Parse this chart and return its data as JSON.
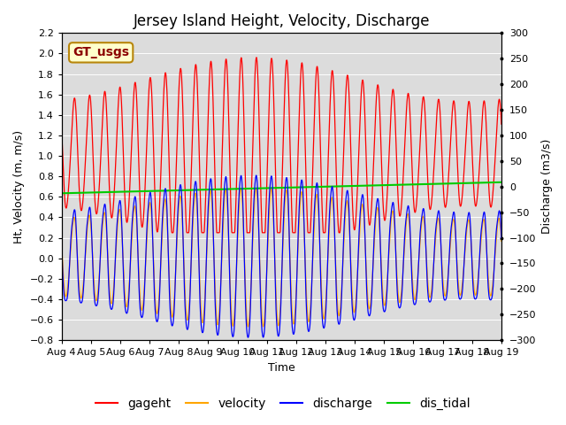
{
  "title": "Jersey Island Height, Velocity, Discharge",
  "ylabel_left": "Ht, Velocity (m, m/s)",
  "ylabel_right": "Discharge (m3/s)",
  "xlabel": "Time",
  "ylim_left": [
    -0.8,
    2.2
  ],
  "ylim_right": [
    -300,
    300
  ],
  "yticks_left": [
    -0.8,
    -0.6,
    -0.4,
    -0.2,
    0.0,
    0.2,
    0.4,
    0.6,
    0.8,
    1.0,
    1.2,
    1.4,
    1.6,
    1.8,
    2.0,
    2.2
  ],
  "yticks_right": [
    -300,
    -250,
    -200,
    -150,
    -100,
    -50,
    0,
    50,
    100,
    150,
    200,
    250,
    300
  ],
  "xtick_labels": [
    "Aug 4",
    "Aug 5",
    "Aug 6",
    "Aug 7",
    "Aug 8",
    "Aug 9",
    "Aug 10",
    "Aug 11",
    "Aug 12",
    "Aug 13",
    "Aug 14",
    "Aug 15",
    "Aug 16",
    "Aug 17",
    "Aug 18",
    "Aug 19"
  ],
  "legend_label": "GT_usgs",
  "line_colors": {
    "gageht": "#ff0000",
    "velocity": "#ffa500",
    "discharge": "#0000ff",
    "dis_tidal": "#00cc00"
  },
  "dis_tidal_value": 0.635,
  "tidal_period_hours": 12.42,
  "bg_color": "#dcdcdc",
  "fig_bg": "#ffffff",
  "title_fontsize": 12,
  "label_fontsize": 9,
  "tick_fontsize": 8,
  "legend_fontsize": 10
}
